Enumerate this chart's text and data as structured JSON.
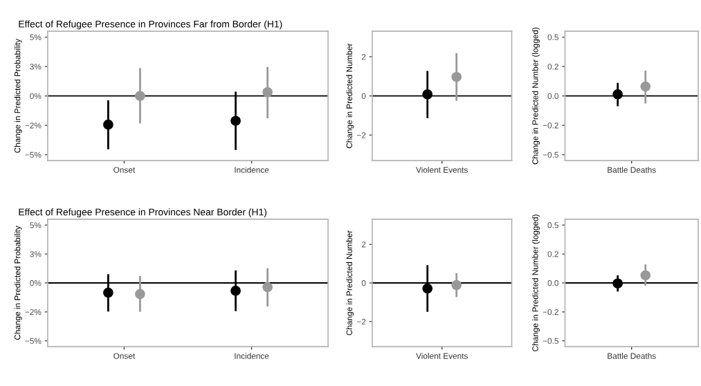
{
  "chart_data": [
    {
      "type": "scatter",
      "title": "Effect of Refugee Presence in Provinces Far from Border (H1)",
      "ylabel": "Change in Predicted Probability",
      "categories": [
        "Onset",
        "Incidence"
      ],
      "marker": "circle",
      "grid": false,
      "ylim": [
        -5.5,
        5.5
      ],
      "yticks": [
        {
          "value": -5,
          "label": "−5%"
        },
        {
          "value": -2.5,
          "label": "−2%"
        },
        {
          "value": 0,
          "label": "0%"
        },
        {
          "value": 2.5,
          "label": "3%"
        },
        {
          "value": 5,
          "label": "5%"
        }
      ],
      "ref_lines": [
        {
          "axis": "y",
          "value": 0,
          "color": "#000000"
        }
      ],
      "series": [
        {
          "color": "#000000",
          "values": [
            -2.44,
            -2.12
          ],
          "errors": [
            [
              -4.54,
              -0.38
            ],
            [
              -4.6,
              0.36
            ]
          ]
        },
        {
          "color": "#999999",
          "values": [
            0,
            0.32
          ],
          "errors": [
            [
              -2.34,
              2.36
            ],
            [
              -1.9,
              2.46
            ]
          ]
        }
      ]
    },
    {
      "type": "scatter",
      "ylabel": "Change in Predicted Number",
      "categories": [
        "Violent Events"
      ],
      "marker": "circle",
      "grid": false,
      "ylim": [
        -3.3,
        3.3
      ],
      "yticks": [
        {
          "value": -2,
          "label": "−2"
        },
        0,
        2
      ],
      "ref_lines": [
        {
          "axis": "y",
          "value": 0,
          "color": "#000000"
        }
      ],
      "series": [
        {
          "color": "#000000",
          "values": [
            0.08
          ],
          "errors": [
            [
              -1.13,
              1.28
            ]
          ]
        },
        {
          "color": "#999999",
          "values": [
            0.97
          ],
          "errors": [
            [
              -0.25,
              2.19
            ]
          ]
        }
      ]
    },
    {
      "type": "scatter",
      "ylabel": "Change in Predicted Number (logged)",
      "categories": [
        "Battle Deaths"
      ],
      "marker": "circle",
      "grid": false,
      "ylim": [
        -0.55,
        0.55
      ],
      "yticks": [
        {
          "value": -0.5,
          "label": "−0.5"
        },
        {
          "value": -0.25,
          "label": "−0.2"
        },
        {
          "value": 0,
          "label": "0.0"
        },
        {
          "value": 0.25,
          "label": "0.2"
        },
        0.5
      ],
      "ref_lines": [
        {
          "axis": "y",
          "value": 0,
          "color": "#000000"
        }
      ],
      "series": [
        {
          "color": "#000000",
          "values": [
            0.014
          ],
          "errors": [
            [
              -0.088,
              0.112
            ]
          ]
        },
        {
          "color": "#999999",
          "values": [
            0.08
          ],
          "errors": [
            [
              -0.064,
              0.216
            ]
          ]
        }
      ]
    },
    {
      "type": "scatter",
      "title": "Effect of Refugee Presence in Provinces Near Border (H1)",
      "ylabel": "Change in Predicted Probability",
      "categories": [
        "Onset",
        "Incidence"
      ],
      "marker": "circle",
      "grid": false,
      "ylim": [
        -5.5,
        5.5
      ],
      "yticks": [
        {
          "value": -5,
          "label": "−5%"
        },
        {
          "value": -2.5,
          "label": "−2%"
        },
        {
          "value": 0,
          "label": "0%"
        },
        {
          "value": 2.5,
          "label": "3%"
        },
        {
          "value": 5,
          "label": "5%"
        }
      ],
      "ref_lines": [
        {
          "axis": "y",
          "value": 0,
          "color": "#000000"
        }
      ],
      "series": [
        {
          "color": "#000000",
          "values": [
            -0.84,
            -0.68
          ],
          "errors": [
            [
              -2.47,
              0.76
            ],
            [
              -2.43,
              1.08
            ]
          ]
        },
        {
          "color": "#999999",
          "values": [
            -0.96,
            -0.36
          ],
          "errors": [
            [
              -2.49,
              0.6
            ],
            [
              -2.03,
              1.27
            ]
          ]
        }
      ]
    },
    {
      "type": "scatter",
      "ylabel": "Change in Predicted Number",
      "categories": [
        "Violent Events"
      ],
      "marker": "circle",
      "grid": false,
      "ylim": [
        -3.3,
        3.3
      ],
      "yticks": [
        {
          "value": -2,
          "label": "−2"
        },
        0,
        2
      ],
      "ref_lines": [
        {
          "axis": "y",
          "value": 0,
          "color": "#000000"
        }
      ],
      "series": [
        {
          "color": "#000000",
          "values": [
            -0.29
          ],
          "errors": [
            [
              -1.5,
              0.92
            ]
          ]
        },
        {
          "color": "#999999",
          "values": [
            -0.11
          ],
          "errors": [
            [
              -0.73,
              0.5
            ]
          ]
        }
      ]
    },
    {
      "type": "scatter",
      "ylabel": "Change in Predicted Number (logged)",
      "categories": [
        "Battle Deaths"
      ],
      "marker": "circle",
      "grid": false,
      "ylim": [
        -0.55,
        0.55
      ],
      "yticks": [
        {
          "value": -0.5,
          "label": "−0.5"
        },
        {
          "value": -0.25,
          "label": "−0.2"
        },
        {
          "value": 0,
          "label": "0.0"
        },
        {
          "value": 0.25,
          "label": "0.2"
        },
        0.5
      ],
      "ref_lines": [
        {
          "axis": "y",
          "value": 0,
          "color": "#000000"
        }
      ],
      "series": [
        {
          "color": "#000000",
          "values": [
            -0.004
          ],
          "errors": [
            [
              -0.074,
              0.066
            ]
          ]
        },
        {
          "color": "#999999",
          "values": [
            0.066
          ],
          "errors": [
            [
              -0.024,
              0.16
            ]
          ]
        }
      ]
    }
  ]
}
